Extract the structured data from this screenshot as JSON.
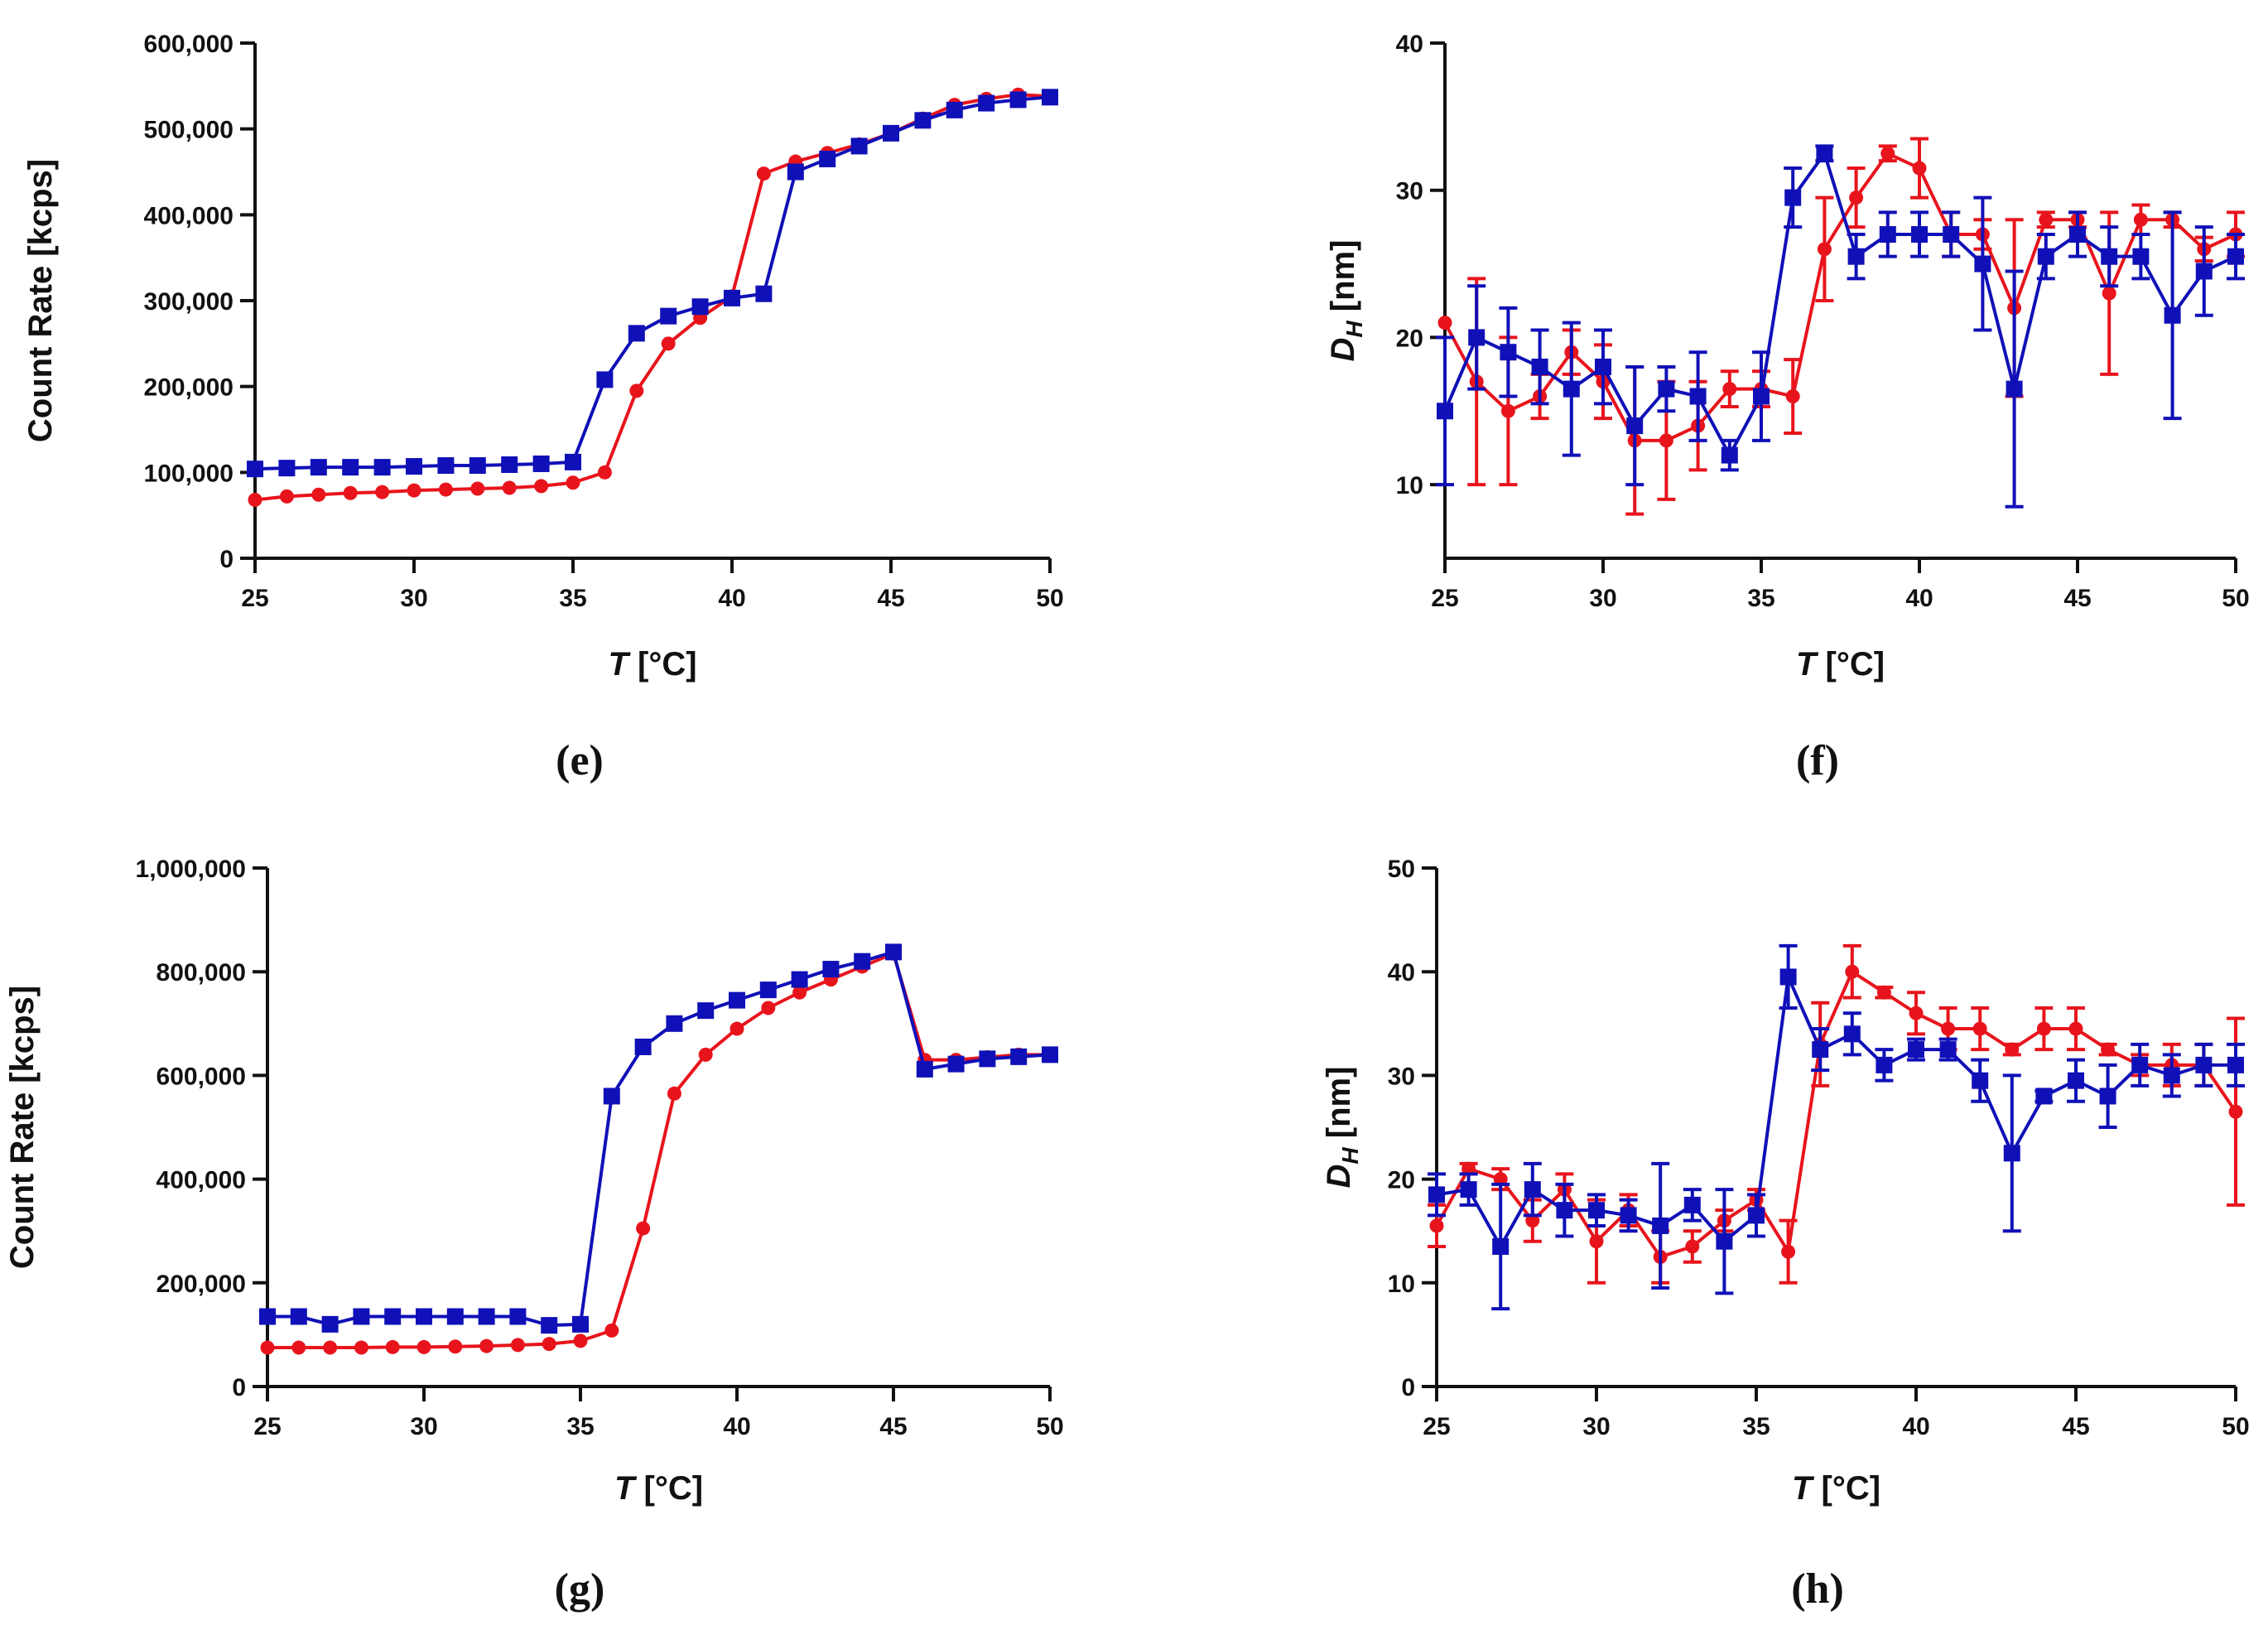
{
  "chart_data": [
    {
      "id": "e",
      "type": "line",
      "panel_label": "(e)",
      "xlabel": "T [°C]",
      "ylabel": "Count Rate [kcps]",
      "xlim": [
        25,
        50
      ],
      "ylim": [
        0,
        600000
      ],
      "xticks": [
        25,
        30,
        35,
        40,
        45,
        50
      ],
      "yticks": [
        0,
        100000,
        200000,
        300000,
        400000,
        500000,
        600000
      ],
      "ytick_labels": [
        "0",
        "100,000",
        "200,000",
        "300,000",
        "400,000",
        "500,000",
        "600,000"
      ],
      "x": [
        25,
        26,
        27,
        28,
        29,
        30,
        31,
        32,
        33,
        34,
        35,
        36,
        37,
        38,
        39,
        40,
        41,
        42,
        43,
        44,
        45,
        46,
        47,
        48,
        49,
        50
      ],
      "series": [
        {
          "name": "red",
          "color": "#e8141c",
          "marker": "circle",
          "values": [
            68000,
            72000,
            74000,
            76000,
            77000,
            79000,
            80000,
            81000,
            82000,
            84000,
            88000,
            100000,
            195000,
            250000,
            280000,
            305000,
            448000,
            462000,
            472000,
            482000,
            495000,
            512000,
            528000,
            535000,
            540000,
            538000
          ]
        },
        {
          "name": "blue",
          "color": "#1010b8",
          "marker": "square",
          "values": [
            104000,
            105000,
            106000,
            106000,
            106000,
            107000,
            108000,
            108000,
            109000,
            110000,
            112000,
            208000,
            262000,
            282000,
            293000,
            303000,
            308000,
            450000,
            465000,
            480000,
            495000,
            510000,
            522000,
            530000,
            534000,
            537000
          ]
        }
      ]
    },
    {
      "id": "f",
      "type": "line",
      "panel_label": "(f)",
      "xlabel": "T [°C]",
      "ylabel": "D_H [nm]",
      "ylabel_main": "D",
      "ylabel_sub": "H",
      "ylabel_unit": " [nm]",
      "xlim": [
        25,
        50
      ],
      "ylim": [
        5,
        40
      ],
      "xticks": [
        25,
        30,
        35,
        40,
        45,
        50
      ],
      "yticks": [
        10,
        20,
        30,
        40
      ],
      "ytick_labels": [
        "10",
        "20",
        "30",
        "40"
      ],
      "x": [
        25,
        26,
        27,
        28,
        29,
        30,
        31,
        32,
        33,
        34,
        35,
        36,
        37,
        38,
        39,
        40,
        41,
        42,
        43,
        44,
        45,
        46,
        47,
        48,
        49,
        50
      ],
      "series": [
        {
          "name": "red",
          "color": "#e8141c",
          "marker": "circle",
          "values": [
            21,
            17,
            15,
            16,
            19,
            17,
            13,
            13,
            14,
            16.5,
            16.5,
            16,
            26,
            29.5,
            32.5,
            31.5,
            27,
            27,
            22,
            28,
            28,
            23,
            28,
            28,
            26,
            27
          ],
          "errors": [
            0,
            7,
            5,
            1.5,
            1.5,
            2.5,
            5,
            4,
            3,
            1.2,
            1.2,
            2.5,
            3.5,
            2,
            0.5,
            2,
            1.5,
            1,
            6,
            0.5,
            0.5,
            5.5,
            1,
            0.5,
            0.8,
            1.5
          ]
        },
        {
          "name": "blue",
          "color": "#1010b8",
          "marker": "square",
          "values": [
            15,
            20,
            19,
            18,
            16.5,
            18,
            14,
            16.5,
            16,
            12,
            16,
            29.5,
            32.5,
            25.5,
            27,
            27,
            27,
            25,
            16.5,
            25.5,
            27,
            25.5,
            25.5,
            21.5,
            24.5,
            25.5
          ],
          "errors": [
            5,
            3.5,
            3,
            2.5,
            4.5,
            2.5,
            4,
            1.5,
            3,
            1,
            3,
            2,
            0.5,
            1.5,
            1.5,
            1.5,
            1.5,
            4.5,
            8,
            1.5,
            1.5,
            2,
            1.5,
            7,
            3,
            1.5
          ]
        }
      ]
    },
    {
      "id": "g",
      "type": "line",
      "panel_label": "(g)",
      "xlabel": "T [°C]",
      "ylabel": "Count Rate [kcps]",
      "xlim": [
        25,
        50
      ],
      "ylim": [
        0,
        1000000
      ],
      "xticks": [
        25,
        30,
        35,
        40,
        45,
        50
      ],
      "yticks": [
        0,
        200000,
        400000,
        600000,
        800000,
        1000000
      ],
      "ytick_labels": [
        "0",
        "200,000",
        "400,000",
        "600,000",
        "800,000",
        "1,000,000"
      ],
      "x": [
        25,
        26,
        27,
        28,
        29,
        30,
        31,
        32,
        33,
        34,
        35,
        36,
        37,
        38,
        39,
        40,
        41,
        42,
        43,
        44,
        45,
        46,
        47,
        48,
        49,
        50
      ],
      "series": [
        {
          "name": "red",
          "color": "#e8141c",
          "marker": "circle",
          "values": [
            75000,
            75000,
            75000,
            75000,
            76000,
            76000,
            77000,
            78000,
            80000,
            82000,
            88000,
            108000,
            305000,
            565000,
            640000,
            690000,
            730000,
            760000,
            785000,
            810000,
            835000,
            630000,
            630000,
            635000,
            640000,
            640000
          ]
        },
        {
          "name": "blue",
          "color": "#1010b8",
          "marker": "square",
          "values": [
            135000,
            135000,
            120000,
            135000,
            135000,
            135000,
            135000,
            135000,
            135000,
            118000,
            120000,
            560000,
            655000,
            700000,
            725000,
            745000,
            765000,
            785000,
            805000,
            820000,
            838000,
            612000,
            622000,
            632000,
            636000,
            640000
          ]
        }
      ]
    },
    {
      "id": "h",
      "type": "line",
      "panel_label": "(h)",
      "xlabel": "T [°C]",
      "ylabel": "D_H [nm]",
      "ylabel_main": "D",
      "ylabel_sub": "H",
      "ylabel_unit": " [nm]",
      "xlim": [
        25,
        50
      ],
      "ylim": [
        0,
        50
      ],
      "xticks": [
        25,
        30,
        35,
        40,
        45,
        50
      ],
      "yticks": [
        0,
        10,
        20,
        30,
        40,
        50
      ],
      "ytick_labels": [
        "0",
        "10",
        "20",
        "30",
        "40",
        "50"
      ],
      "x": [
        25,
        26,
        27,
        28,
        29,
        30,
        31,
        32,
        33,
        34,
        35,
        36,
        37,
        38,
        39,
        40,
        41,
        42,
        43,
        44,
        45,
        46,
        47,
        48,
        49,
        50
      ],
      "series": [
        {
          "name": "red",
          "color": "#e8141c",
          "marker": "circle",
          "values": [
            15.5,
            21,
            20,
            16,
            19,
            14,
            17,
            12.5,
            13.5,
            16,
            18,
            13,
            33,
            40,
            38,
            36,
            34.5,
            34.5,
            32.5,
            34.5,
            34.5,
            32.5,
            31,
            31,
            31,
            26.5
          ],
          "errors": [
            2,
            0.5,
            1,
            2,
            1.5,
            4,
            1.5,
            2.5,
            1.5,
            1,
            1,
            3,
            4,
            2.5,
            0.5,
            2,
            2,
            2,
            0.5,
            2,
            2,
            0.5,
            1,
            2,
            2,
            9
          ]
        },
        {
          "name": "blue",
          "color": "#1010b8",
          "marker": "square",
          "values": [
            18.5,
            19,
            13.5,
            19,
            17,
            17,
            16.5,
            15.5,
            17.5,
            14,
            16.5,
            39.5,
            32.5,
            34,
            31,
            32.5,
            32.5,
            29.5,
            22.5,
            28,
            29.5,
            28,
            31,
            30,
            31,
            31
          ],
          "errors": [
            2,
            1.5,
            6,
            2.5,
            2.5,
            1.5,
            1.5,
            6,
            1.5,
            5,
            2,
            3,
            2,
            2,
            1.5,
            1,
            1,
            2,
            7.5,
            0.5,
            2,
            3,
            2,
            2,
            2,
            2
          ]
        }
      ]
    }
  ]
}
